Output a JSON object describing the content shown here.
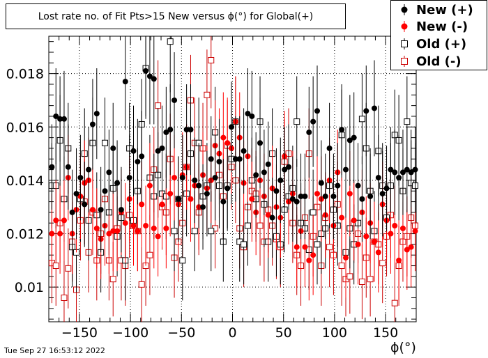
{
  "chart_data": {
    "type": "scatter",
    "title": "Lost rate no. of Fit Pts>15 New versus ϕ(°) for Global(+)",
    "xlabel": "ϕ(°)",
    "ylabel": "",
    "xlim": [
      -180,
      180
    ],
    "ylim": [
      0.0087,
      0.0194
    ],
    "xticks": [
      -150,
      -100,
      -50,
      0,
      50,
      100,
      150
    ],
    "xtick_labels": [
      "−150",
      "−100",
      "−50",
      "0",
      "50",
      "100",
      "150"
    ],
    "yticks": [
      0.01,
      0.012,
      0.014,
      0.016,
      0.018
    ],
    "ytick_labels": [
      "0.01",
      "0.012",
      "0.014",
      "0.016",
      "0.018"
    ],
    "grid": true,
    "legend_position": "top-right",
    "x": [
      -177,
      -173,
      -169,
      -165,
      -161,
      -157,
      -153,
      -149,
      -145,
      -141,
      -137,
      -133,
      -129,
      -125,
      -121,
      -117,
      -113,
      -109,
      -105,
      -101,
      -97,
      -93,
      -89,
      -85,
      -81,
      -77,
      -73,
      -69,
      -65,
      -61,
      -57,
      -53,
      -49,
      -45,
      -41,
      -37,
      -33,
      -29,
      -25,
      -21,
      -17,
      -13,
      -9,
      -5,
      -1,
      3,
      7,
      11,
      15,
      19,
      23,
      27,
      31,
      35,
      39,
      43,
      47,
      51,
      55,
      59,
      63,
      67,
      71,
      75,
      79,
      83,
      87,
      91,
      95,
      99,
      103,
      107,
      111,
      115,
      119,
      123,
      127,
      131,
      135,
      139,
      143,
      147,
      151,
      155,
      159,
      163,
      167,
      171,
      175,
      179
    ],
    "series": [
      {
        "name": "New (+)",
        "color": "#000000",
        "marker": "filled-circle",
        "values": [
          0.0145,
          0.0164,
          0.0163,
          0.0163,
          0.0145,
          0.0128,
          0.0135,
          0.0141,
          0.0131,
          0.0144,
          0.0161,
          0.0165,
          0.0129,
          0.0136,
          0.0143,
          0.0152,
          0.0139,
          0.0129,
          0.0177,
          0.0141,
          0.0151,
          0.0147,
          0.0149,
          0.0181,
          0.0179,
          0.0178,
          0.0151,
          0.0152,
          0.0158,
          0.0159,
          0.017,
          0.0133,
          0.0141,
          0.0159,
          0.0159,
          0.014,
          0.0138,
          0.013,
          0.0135,
          0.0148,
          0.0141,
          0.0147,
          0.0132,
          0.0137,
          0.016,
          0.0148,
          0.0148,
          0.0151,
          0.0165,
          0.0164,
          0.0142,
          0.0154,
          0.0143,
          0.0146,
          0.0126,
          0.0136,
          0.014,
          0.0144,
          0.0145,
          0.0133,
          0.0132,
          0.0134,
          0.0134,
          0.0158,
          0.0162,
          0.0166,
          0.0139,
          0.0134,
          0.0152,
          0.0134,
          0.0138,
          0.0159,
          0.0144,
          0.0155,
          0.0156,
          0.0138,
          0.0133,
          0.0166,
          0.0134,
          0.0167,
          0.0141,
          0.0135,
          0.0137,
          0.0144,
          0.0143,
          0.0141,
          0.0143,
          0.0144,
          0.0143,
          0.0144
        ],
        "errors": [
          0.0016,
          0.0018,
          0.0016,
          0.0018,
          0.0016,
          0.0016,
          0.0017,
          0.0016,
          0.0016,
          0.0016,
          0.0017,
          0.0017,
          0.0016,
          0.0016,
          0.0016,
          0.0017,
          0.0016,
          0.0016,
          0.0018,
          0.0016,
          0.0017,
          0.0016,
          0.0017,
          0.0018,
          0.0018,
          0.0017,
          0.0016,
          0.0016,
          0.0017,
          0.0017,
          0.0018,
          0.0016,
          0.0016,
          0.0017,
          0.0017,
          0.0016,
          0.0016,
          0.0016,
          0.0016,
          0.0016,
          0.0016,
          0.0016,
          0.0016,
          0.0016,
          0.0017,
          0.0016,
          0.0016,
          0.0016,
          0.0017,
          0.0017,
          0.0016,
          0.0017,
          0.0016,
          0.0016,
          0.0015,
          0.0016,
          0.0016,
          0.0016,
          0.0016,
          0.0016,
          0.0016,
          0.0016,
          0.0016,
          0.0017,
          0.0017,
          0.0017,
          0.0016,
          0.0016,
          0.0017,
          0.0016,
          0.0016,
          0.0017,
          0.0016,
          0.0017,
          0.0017,
          0.0016,
          0.0016,
          0.0017,
          0.0016,
          0.0018,
          0.0016,
          0.0016,
          0.0016,
          0.0016,
          0.0016,
          0.0016,
          0.0016,
          0.0016,
          0.0016,
          0.0016
        ]
      },
      {
        "name": "New (-)",
        "color": "#ff0000",
        "marker": "filled-circle",
        "values": [
          0.012,
          0.0125,
          0.012,
          0.0125,
          0.0141,
          0.012,
          0.0129,
          0.0134,
          0.0139,
          0.014,
          0.0129,
          0.0122,
          0.0118,
          0.0123,
          0.012,
          0.0121,
          0.0121,
          0.0128,
          0.0124,
          0.0133,
          0.0123,
          0.0121,
          0.0131,
          0.0123,
          0.0138,
          0.0122,
          0.0119,
          0.0131,
          0.0122,
          0.0135,
          0.0141,
          0.0131,
          0.0142,
          0.0145,
          0.0133,
          0.0138,
          0.013,
          0.0142,
          0.0137,
          0.014,
          0.0153,
          0.015,
          0.0156,
          0.0154,
          0.0152,
          0.0162,
          0.0156,
          0.0139,
          0.0149,
          0.0133,
          0.0128,
          0.014,
          0.0134,
          0.0127,
          0.0137,
          0.013,
          0.0126,
          0.0149,
          0.0132,
          0.0135,
          0.0115,
          0.0121,
          0.0115,
          0.011,
          0.0112,
          0.0135,
          0.0133,
          0.0127,
          0.014,
          0.0123,
          0.0143,
          0.0126,
          0.0111,
          0.0135,
          0.0125,
          0.0116,
          0.0128,
          0.0119,
          0.0124,
          0.0117,
          0.0113,
          0.0131,
          0.0125,
          0.012,
          0.0123,
          0.011,
          0.0122,
          0.0114,
          0.0115,
          0.0121
        ],
        "errors": [
          0.0015,
          0.0015,
          0.0015,
          0.0015,
          0.0016,
          0.0015,
          0.0016,
          0.0016,
          0.0016,
          0.0016,
          0.0016,
          0.0015,
          0.0015,
          0.0015,
          0.0015,
          0.0015,
          0.0015,
          0.0016,
          0.0015,
          0.0016,
          0.0015,
          0.0015,
          0.0016,
          0.0015,
          0.0016,
          0.0015,
          0.0015,
          0.0016,
          0.0015,
          0.0016,
          0.0016,
          0.0016,
          0.0016,
          0.0016,
          0.0016,
          0.0016,
          0.0016,
          0.0016,
          0.0016,
          0.0016,
          0.0017,
          0.0017,
          0.0017,
          0.0017,
          0.0017,
          0.0017,
          0.0017,
          0.0016,
          0.0017,
          0.0016,
          0.0016,
          0.0016,
          0.0016,
          0.0016,
          0.0016,
          0.0016,
          0.0015,
          0.0017,
          0.0016,
          0.0016,
          0.0015,
          0.0015,
          0.0015,
          0.0015,
          0.0015,
          0.0016,
          0.0016,
          0.0016,
          0.0016,
          0.0015,
          0.0016,
          0.0015,
          0.0015,
          0.0016,
          0.0015,
          0.0015,
          0.0016,
          0.0015,
          0.0015,
          0.0015,
          0.0015,
          0.0016,
          0.0015,
          0.0015,
          0.0015,
          0.0015,
          0.0015,
          0.0015,
          0.0015,
          0.0015
        ]
      },
      {
        "name": "Old (+)",
        "color": "#000000",
        "marker": "open-square",
        "values": [
          0.0138,
          0.0138,
          0.0155,
          0.0133,
          0.0152,
          0.0115,
          0.0113,
          0.0133,
          0.015,
          0.0125,
          0.0154,
          0.0127,
          0.0113,
          0.0154,
          0.0128,
          0.0137,
          0.0119,
          0.0126,
          0.011,
          0.0152,
          0.0125,
          0.0136,
          0.0161,
          0.0182,
          0.0141,
          0.0134,
          0.0142,
          0.0135,
          0.0134,
          0.0192,
          0.0121,
          0.0133,
          0.011,
          0.0135,
          0.015,
          0.0121,
          0.0154,
          0.0134,
          0.0138,
          0.0121,
          0.0158,
          0.0138,
          0.0117,
          0.0138,
          0.0148,
          0.0162,
          0.0117,
          0.0116,
          0.0123,
          0.014,
          0.0133,
          0.0162,
          0.0131,
          0.0117,
          0.015,
          0.0119,
          0.0116,
          0.0129,
          0.0134,
          0.0137,
          0.0162,
          0.0124,
          0.0122,
          0.0114,
          0.0128,
          0.0116,
          0.012,
          0.0122,
          0.0138,
          0.0129,
          0.0123,
          0.0157,
          0.0113,
          0.0122,
          0.0116,
          0.0124,
          0.0163,
          0.0152,
          0.0136,
          0.0121,
          0.0151,
          0.0138,
          0.0126,
          0.0138,
          0.0157,
          0.0155,
          0.0136,
          0.0162,
          0.0139,
          0.0138
        ],
        "errors": [
          0.0016,
          0.0016,
          0.0017,
          0.0016,
          0.0017,
          0.0015,
          0.0015,
          0.0016,
          0.0017,
          0.0015,
          0.0017,
          0.0016,
          0.0015,
          0.0017,
          0.0016,
          0.0016,
          0.0015,
          0.0015,
          0.0015,
          0.0017,
          0.0015,
          0.0016,
          0.0017,
          0.0018,
          0.0016,
          0.0016,
          0.0016,
          0.0016,
          0.0016,
          0.0019,
          0.0015,
          0.0016,
          0.0015,
          0.0016,
          0.0017,
          0.0015,
          0.0017,
          0.0016,
          0.0016,
          0.0015,
          0.0017,
          0.0016,
          0.0015,
          0.0016,
          0.0017,
          0.0017,
          0.0015,
          0.0015,
          0.0015,
          0.0016,
          0.0016,
          0.0017,
          0.0016,
          0.0015,
          0.0017,
          0.0015,
          0.0015,
          0.0016,
          0.0016,
          0.0016,
          0.0017,
          0.0015,
          0.0015,
          0.0015,
          0.0016,
          0.0015,
          0.0015,
          0.0015,
          0.0016,
          0.0016,
          0.0015,
          0.0017,
          0.0015,
          0.0015,
          0.0015,
          0.0015,
          0.0017,
          0.0017,
          0.0016,
          0.0015,
          0.0017,
          0.0016,
          0.0015,
          0.0016,
          0.0017,
          0.0017,
          0.0016,
          0.0017,
          0.0016,
          0.0016
        ]
      },
      {
        "name": "Old (-)",
        "color": "#cc0000",
        "marker": "open-square",
        "values": [
          0.0109,
          0.0108,
          0.0124,
          0.0096,
          0.0107,
          0.0117,
          0.0099,
          0.0125,
          0.0132,
          0.0113,
          0.0128,
          0.011,
          0.012,
          0.0133,
          0.011,
          0.0103,
          0.0122,
          0.011,
          0.0108,
          0.0127,
          0.0123,
          0.0121,
          0.0101,
          0.0108,
          0.0112,
          0.0144,
          0.0168,
          0.013,
          0.0128,
          0.0148,
          0.0111,
          0.0117,
          0.0124,
          0.0145,
          0.017,
          0.0154,
          0.0128,
          0.0152,
          0.0172,
          0.0185,
          0.0122,
          0.0142,
          0.0134,
          0.0153,
          0.0145,
          0.014,
          0.0122,
          0.0115,
          0.013,
          0.0136,
          0.0135,
          0.0123,
          0.0117,
          0.0129,
          0.0123,
          0.0118,
          0.0115,
          0.0147,
          0.015,
          0.0124,
          0.0112,
          0.0108,
          0.0126,
          0.015,
          0.0119,
          0.013,
          0.0108,
          0.0126,
          0.0115,
          0.0112,
          0.0131,
          0.0108,
          0.0103,
          0.0104,
          0.0124,
          0.012,
          0.0102,
          0.0111,
          0.0103,
          0.0117,
          0.0116,
          0.0109,
          0.0119,
          0.0127,
          0.0094,
          0.0108,
          0.0117,
          0.0119,
          0.0126,
          0.0123
        ],
        "errors": [
          0.0015,
          0.0015,
          0.0015,
          0.0014,
          0.0015,
          0.0015,
          0.0014,
          0.0015,
          0.0016,
          0.0015,
          0.0016,
          0.0015,
          0.0015,
          0.0016,
          0.0015,
          0.0014,
          0.0015,
          0.0015,
          0.0015,
          0.0016,
          0.0015,
          0.0015,
          0.0014,
          0.0015,
          0.0015,
          0.0016,
          0.0017,
          0.0016,
          0.0016,
          0.0017,
          0.0015,
          0.0015,
          0.0015,
          0.0016,
          0.0017,
          0.0017,
          0.0016,
          0.0017,
          0.0017,
          0.0018,
          0.0015,
          0.0016,
          0.0016,
          0.0017,
          0.0016,
          0.0016,
          0.0015,
          0.0015,
          0.0016,
          0.0016,
          0.0016,
          0.0015,
          0.0015,
          0.0016,
          0.0015,
          0.0015,
          0.0015,
          0.0016,
          0.0017,
          0.0015,
          0.0015,
          0.0015,
          0.0015,
          0.0017,
          0.0015,
          0.0016,
          0.0015,
          0.0015,
          0.0015,
          0.0015,
          0.0016,
          0.0015,
          0.0014,
          0.0014,
          0.0015,
          0.0015,
          0.0014,
          0.0015,
          0.0014,
          0.0015,
          0.0015,
          0.0015,
          0.0015,
          0.0016,
          0.0014,
          0.0015,
          0.0015,
          0.0015,
          0.0015,
          0.0015
        ]
      }
    ]
  },
  "timestamp": "Tue Sep 27 16:53:12 2022"
}
